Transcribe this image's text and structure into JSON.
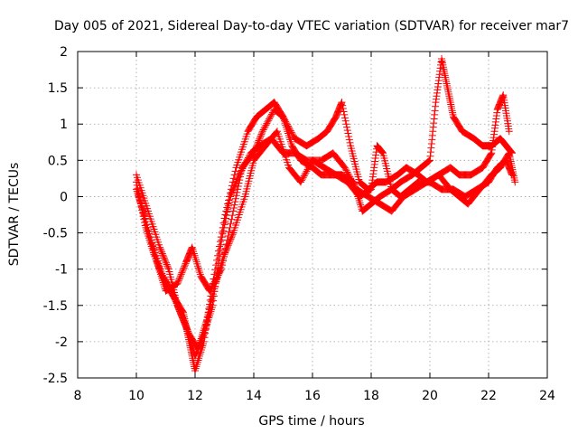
{
  "chart_data": {
    "type": "scatter",
    "title": "Day 005 of 2021, Sidereal Day-to-day VTEC variation (SDTVAR) for receiver mar7",
    "xlabel": "GPS time / hours",
    "ylabel": "SDTVAR / TECUs",
    "xlim": [
      8,
      24
    ],
    "ylim": [
      -2.5,
      2
    ],
    "xticks": [
      "8",
      "10",
      "12",
      "14",
      "16",
      "18",
      "20",
      "22",
      "24"
    ],
    "yticks": [
      "-2.5",
      "-2",
      "-1.5",
      "-1",
      "-0.5",
      "0",
      "0.5",
      "1",
      "1.5",
      "2"
    ],
    "grid": true,
    "marker": "+",
    "color": "#ff0000",
    "series": [
      {
        "name": "track-1",
        "x": [
          10.0,
          10.3,
          10.6,
          11.0,
          11.3,
          11.6,
          11.8,
          12.0,
          12.3,
          12.6,
          13.0,
          13.4,
          13.8,
          14.1,
          14.4,
          14.7,
          15.0,
          15.3,
          15.6,
          16.0,
          16.3,
          16.7,
          17.0,
          17.4,
          17.7,
          18.0,
          18.3,
          18.7,
          19.0,
          19.4,
          19.7,
          20.0,
          20.2,
          20.4,
          20.6,
          20.8,
          21.1,
          21.5,
          21.8,
          22.1,
          22.4,
          22.6,
          22.8
        ],
        "y": [
          0.2,
          -0.4,
          -0.8,
          -1.2,
          -1.4,
          -1.6,
          -2.0,
          -2.4,
          -2.0,
          -1.2,
          -0.3,
          0.4,
          0.9,
          1.1,
          1.2,
          1.3,
          1.1,
          0.7,
          0.5,
          0.4,
          0.3,
          0.3,
          0.3,
          0.2,
          -0.2,
          -0.1,
          0.0,
          0.1,
          0.2,
          0.3,
          0.4,
          0.5,
          1.3,
          1.9,
          1.5,
          1.1,
          0.9,
          0.8,
          0.7,
          0.7,
          0.8,
          0.7,
          0.6
        ]
      },
      {
        "name": "track-2",
        "x": [
          10.0,
          10.3,
          10.7,
          11.0,
          11.4,
          11.7,
          11.9,
          12.2,
          12.5,
          12.9,
          13.3,
          13.6,
          14.0,
          14.3,
          14.7,
          15.0,
          15.4,
          15.8,
          16.2,
          16.5,
          16.8,
          17.0,
          17.3,
          17.6,
          17.9,
          18.2,
          18.5,
          18.9,
          19.2,
          19.6,
          19.9,
          20.3,
          20.7,
          21.0,
          21.4,
          21.8,
          22.1,
          22.3,
          22.5,
          22.7
        ],
        "y": [
          0.1,
          -0.3,
          -0.9,
          -1.3,
          -1.2,
          -0.9,
          -0.7,
          -1.1,
          -1.3,
          -1.0,
          -0.2,
          0.4,
          0.6,
          0.9,
          1.2,
          1.1,
          0.8,
          0.7,
          0.8,
          0.9,
          1.1,
          1.3,
          0.7,
          0.2,
          0.1,
          0.2,
          0.2,
          0.3,
          0.4,
          0.3,
          0.2,
          0.3,
          0.4,
          0.3,
          0.3,
          0.4,
          0.6,
          1.2,
          1.4,
          0.9
        ]
      },
      {
        "name": "track-3",
        "x": [
          10.1,
          10.5,
          10.9,
          11.2,
          11.5,
          11.8,
          12.1,
          12.4,
          12.7,
          13.0,
          13.3,
          13.7,
          14.0,
          14.4,
          14.8,
          15.2,
          15.6,
          16.0,
          16.4,
          16.8,
          17.2,
          17.6,
          18.0,
          18.2,
          18.4,
          18.7,
          19.0,
          19.3,
          19.6,
          20.0,
          20.4,
          20.8,
          21.2,
          21.6,
          22.0,
          22.3,
          22.6,
          22.8
        ],
        "y": [
          0.0,
          -0.6,
          -1.1,
          -1.3,
          -1.6,
          -1.9,
          -2.1,
          -1.7,
          -1.2,
          -0.8,
          -0.5,
          0.0,
          0.5,
          0.7,
          0.9,
          0.4,
          0.2,
          0.5,
          0.4,
          0.3,
          0.2,
          0.0,
          0.1,
          0.7,
          0.6,
          0.1,
          0.0,
          0.1,
          0.2,
          0.2,
          0.1,
          0.1,
          0.0,
          0.1,
          0.2,
          0.4,
          0.5,
          0.3
        ]
      },
      {
        "name": "track-4",
        "x": [
          10.0,
          10.4,
          10.8,
          11.1,
          11.4,
          11.7,
          12.0,
          12.3,
          12.6,
          12.9,
          13.2,
          13.5,
          13.9,
          14.2,
          14.6,
          15.0,
          15.4,
          15.8,
          16.3,
          16.7,
          17.1,
          17.5,
          17.9,
          18.3,
          18.7,
          19.1,
          19.5,
          19.9,
          20.3,
          20.7,
          21.0,
          21.3,
          21.7,
          22.1,
          22.4,
          22.7,
          22.9
        ],
        "y": [
          0.3,
          -0.2,
          -0.7,
          -1.0,
          -1.5,
          -1.8,
          -2.2,
          -1.9,
          -1.5,
          -0.6,
          0.0,
          0.3,
          0.6,
          0.7,
          0.8,
          0.6,
          0.6,
          0.5,
          0.5,
          0.6,
          0.4,
          0.1,
          0.0,
          -0.1,
          -0.2,
          0.0,
          0.1,
          0.2,
          0.3,
          0.1,
          0.0,
          -0.1,
          0.1,
          0.3,
          0.4,
          0.6,
          0.2
        ]
      }
    ]
  }
}
